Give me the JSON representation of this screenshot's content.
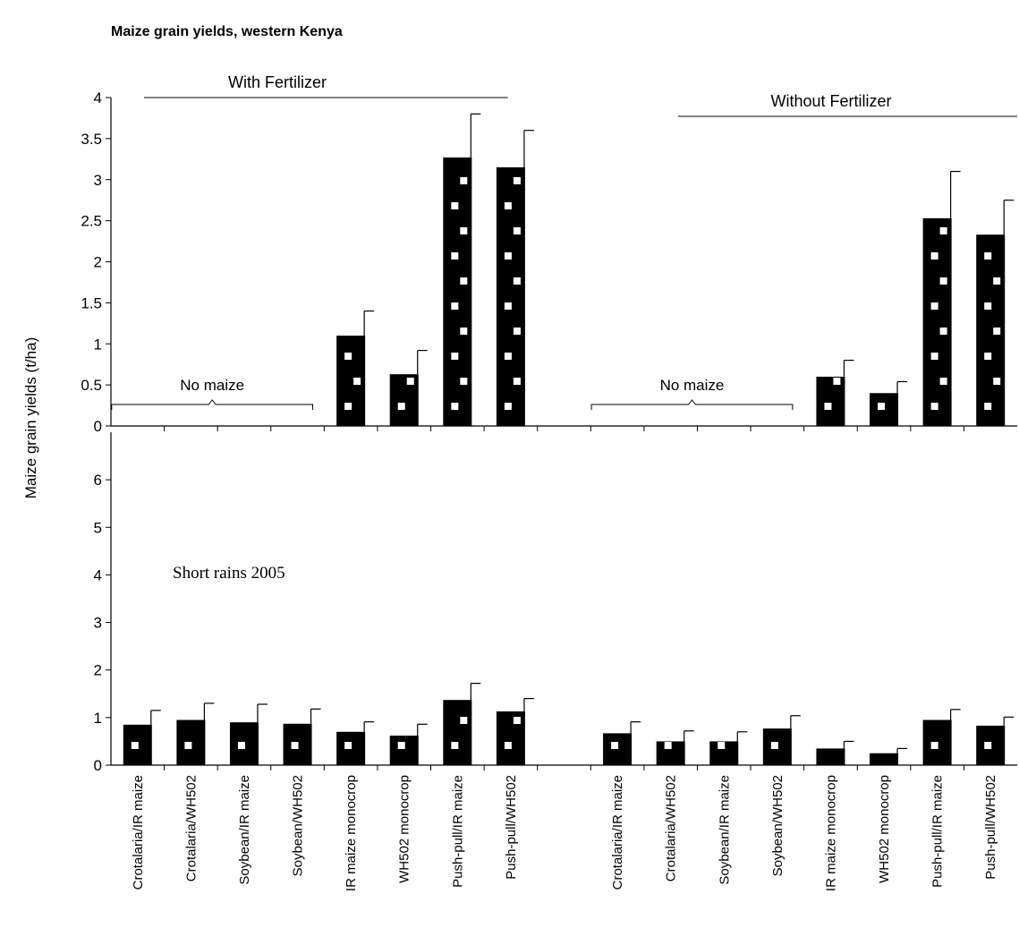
{
  "chart_data": {
    "title": "Maize grain yields, western Kenya",
    "ylabel": "Maize grain yields (t/ha)",
    "colors": {
      "bar": "#000000",
      "dot": "#ffffff",
      "background": "#ffffff"
    },
    "categories": [
      "Crotalaria/IR maize",
      "Crotalaria/WH502",
      "Soybean/IR maize",
      "Soybean/WH502",
      "IR maize monocrop",
      "WH502 monocrop",
      "Push-pull/IR maize",
      "Push-pull/WH502",
      "",
      "Crotalaria/IR maize",
      "Crotalaria/WH502",
      "Soybean/IR maize",
      "Soybean/WH502",
      "IR maize monocrop",
      "WH502 monocrop",
      "Push-pull/IR maize",
      "Push-pull/WH502"
    ],
    "panels": [
      {
        "type": "bar",
        "ylim": [
          0,
          4
        ],
        "yticks": [
          "0",
          "0.5",
          "1",
          "1.5",
          "2",
          "2.5",
          "3",
          "3.5",
          "4"
        ],
        "series": [
          {
            "values": [
              null,
              null,
              null,
              null,
              1.1,
              0.63,
              3.27,
              3.15,
              null,
              null,
              null,
              null,
              null,
              0.6,
              0.4,
              2.53,
              2.33
            ],
            "errors": [
              null,
              null,
              null,
              null,
              0.3,
              0.29,
              0.53,
              0.45,
              null,
              null,
              null,
              null,
              null,
              0.2,
              0.14,
              0.57,
              0.42
            ]
          }
        ],
        "group_labels": [
          {
            "text": "With Fertilizer",
            "from": 0,
            "to": 7
          },
          {
            "text": "Without Fertilizer",
            "from": 10,
            "to": 16
          }
        ],
        "annotations": [
          {
            "text": "No maize",
            "from": 0,
            "to": 3
          },
          {
            "text": "No maize",
            "from": 9,
            "to": 12
          }
        ]
      },
      {
        "type": "bar",
        "ylim": [
          0,
          7
        ],
        "yticks": [
          "0",
          "1",
          "2",
          "3",
          "4",
          "5",
          "6"
        ],
        "annotation": "Short rains 2005",
        "series": [
          {
            "values": [
              0.85,
              0.95,
              0.9,
              0.87,
              0.7,
              0.62,
              1.37,
              1.13,
              null,
              0.67,
              0.5,
              0.5,
              0.77,
              0.35,
              0.25,
              0.95,
              0.83
            ],
            "errors": [
              0.3,
              0.35,
              0.38,
              0.31,
              0.21,
              0.24,
              0.35,
              0.27,
              null,
              0.24,
              0.22,
              0.2,
              0.27,
              0.15,
              0.1,
              0.22,
              0.18
            ]
          }
        ]
      }
    ]
  }
}
